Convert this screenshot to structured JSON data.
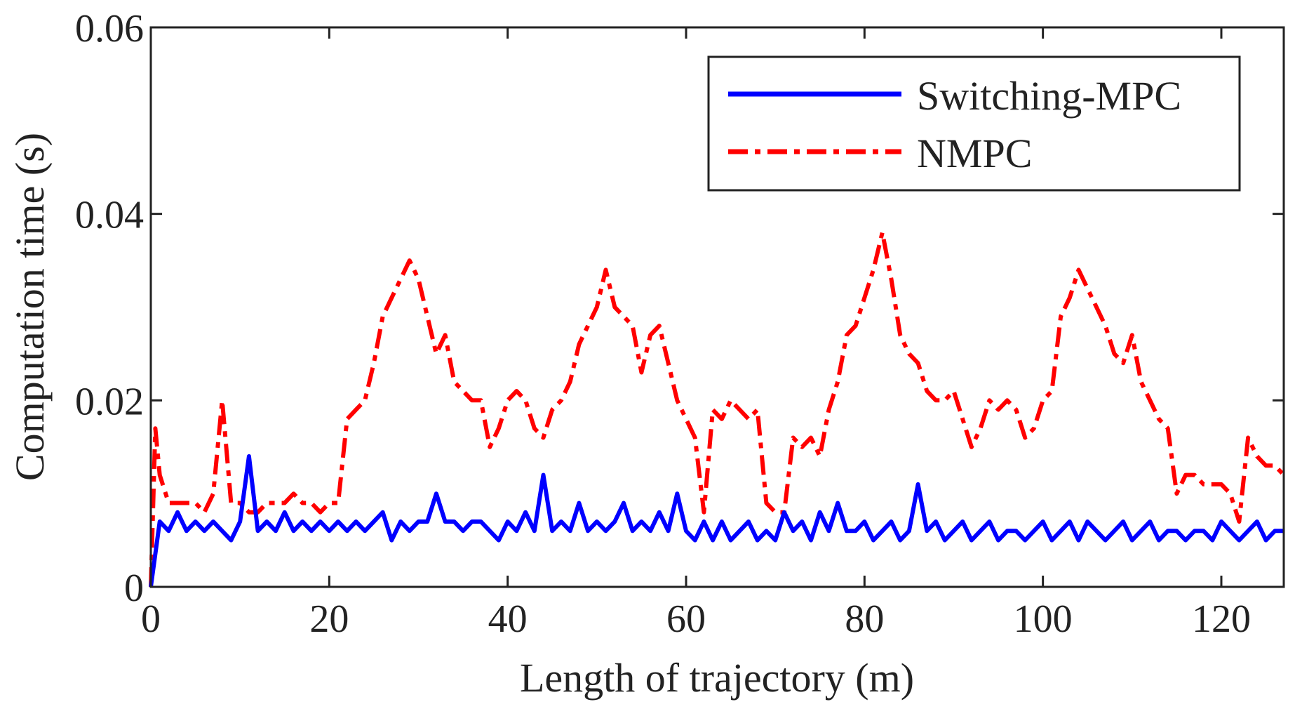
{
  "chart_data": {
    "type": "line",
    "title": "",
    "xlabel": "Length of trajectory (m)",
    "ylabel": "Computation time (s)",
    "xlim": [
      0,
      127
    ],
    "ylim": [
      0,
      0.06
    ],
    "xticks": [
      0,
      20,
      40,
      60,
      80,
      100,
      120
    ],
    "xtick_labels": [
      "0",
      "20",
      "40",
      "60",
      "80",
      "100",
      "120"
    ],
    "yticks": [
      0,
      0.02,
      0.04,
      0.06
    ],
    "ytick_labels": [
      "0",
      "0.02",
      "0.04",
      "0.06"
    ],
    "grid": false,
    "legend_position": "top-right",
    "series": [
      {
        "name": "Switching-MPC",
        "color": "#0000ff",
        "style": "solid",
        "x": [
          0,
          1,
          2,
          3,
          4,
          5,
          6,
          7,
          8,
          9,
          10,
          11,
          12,
          13,
          14,
          15,
          16,
          17,
          18,
          19,
          20,
          21,
          22,
          23,
          24,
          25,
          26,
          27,
          28,
          29,
          30,
          31,
          32,
          33,
          34,
          35,
          36,
          37,
          38,
          39,
          40,
          41,
          42,
          43,
          44,
          45,
          46,
          47,
          48,
          49,
          50,
          51,
          52,
          53,
          54,
          55,
          56,
          57,
          58,
          59,
          60,
          61,
          62,
          63,
          64,
          65,
          66,
          67,
          68,
          69,
          70,
          71,
          72,
          73,
          74,
          75,
          76,
          77,
          78,
          79,
          80,
          81,
          82,
          83,
          84,
          85,
          86,
          87,
          88,
          89,
          90,
          91,
          92,
          93,
          94,
          95,
          96,
          97,
          98,
          99,
          100,
          101,
          102,
          103,
          104,
          105,
          106,
          107,
          108,
          109,
          110,
          111,
          112,
          113,
          114,
          115,
          116,
          117,
          118,
          119,
          120,
          121,
          122,
          123,
          124,
          125,
          126,
          127
        ],
        "values": [
          0.0,
          0.007,
          0.006,
          0.008,
          0.006,
          0.007,
          0.006,
          0.007,
          0.006,
          0.005,
          0.007,
          0.014,
          0.006,
          0.007,
          0.006,
          0.008,
          0.006,
          0.007,
          0.006,
          0.007,
          0.006,
          0.007,
          0.006,
          0.007,
          0.006,
          0.007,
          0.008,
          0.005,
          0.007,
          0.006,
          0.007,
          0.007,
          0.01,
          0.007,
          0.007,
          0.006,
          0.007,
          0.007,
          0.006,
          0.005,
          0.007,
          0.006,
          0.008,
          0.006,
          0.012,
          0.006,
          0.007,
          0.006,
          0.009,
          0.006,
          0.007,
          0.006,
          0.007,
          0.009,
          0.006,
          0.007,
          0.006,
          0.008,
          0.006,
          0.01,
          0.006,
          0.005,
          0.007,
          0.005,
          0.007,
          0.005,
          0.006,
          0.007,
          0.005,
          0.006,
          0.005,
          0.008,
          0.006,
          0.007,
          0.005,
          0.008,
          0.006,
          0.009,
          0.006,
          0.006,
          0.007,
          0.005,
          0.006,
          0.007,
          0.005,
          0.006,
          0.011,
          0.006,
          0.007,
          0.005,
          0.006,
          0.007,
          0.005,
          0.006,
          0.007,
          0.005,
          0.006,
          0.006,
          0.005,
          0.006,
          0.007,
          0.005,
          0.006,
          0.007,
          0.005,
          0.007,
          0.006,
          0.005,
          0.006,
          0.007,
          0.005,
          0.006,
          0.007,
          0.005,
          0.006,
          0.006,
          0.005,
          0.006,
          0.006,
          0.005,
          0.007,
          0.006,
          0.005,
          0.006,
          0.007,
          0.005,
          0.006,
          0.006
        ]
      },
      {
        "name": "NMPC",
        "color": "#ff0000",
        "style": "dash-dot",
        "x": [
          0,
          0.5,
          1,
          2,
          3,
          4,
          5,
          6,
          7,
          8,
          9,
          10,
          11,
          12,
          13,
          14,
          15,
          16,
          17,
          18,
          19,
          20,
          21,
          22,
          23,
          24,
          25,
          26,
          27,
          28,
          29,
          30,
          31,
          32,
          33,
          34,
          35,
          36,
          37,
          38,
          39,
          40,
          41,
          42,
          43,
          44,
          45,
          46,
          47,
          48,
          49,
          50,
          51,
          52,
          53,
          54,
          55,
          56,
          57,
          58,
          59,
          60,
          61,
          62,
          63,
          64,
          65,
          66,
          67,
          68,
          69,
          70,
          71,
          72,
          73,
          74,
          75,
          76,
          77,
          78,
          79,
          80,
          81,
          82,
          83,
          84,
          85,
          86,
          87,
          88,
          89,
          90,
          91,
          92,
          93,
          94,
          95,
          96,
          97,
          98,
          99,
          100,
          101,
          102,
          103,
          104,
          105,
          106,
          107,
          108,
          109,
          110,
          111,
          112,
          113,
          114,
          115,
          116,
          117,
          118,
          119,
          120,
          121,
          122,
          123,
          124,
          125,
          126,
          127
        ],
        "values": [
          0.0,
          0.017,
          0.012,
          0.009,
          0.009,
          0.009,
          0.009,
          0.008,
          0.01,
          0.02,
          0.009,
          0.009,
          0.008,
          0.008,
          0.009,
          0.009,
          0.009,
          0.01,
          0.009,
          0.009,
          0.008,
          0.009,
          0.009,
          0.018,
          0.019,
          0.02,
          0.024,
          0.029,
          0.031,
          0.033,
          0.035,
          0.033,
          0.029,
          0.025,
          0.027,
          0.022,
          0.021,
          0.02,
          0.02,
          0.015,
          0.017,
          0.02,
          0.021,
          0.02,
          0.017,
          0.016,
          0.019,
          0.02,
          0.022,
          0.026,
          0.028,
          0.03,
          0.034,
          0.03,
          0.029,
          0.028,
          0.023,
          0.027,
          0.028,
          0.024,
          0.02,
          0.018,
          0.016,
          0.008,
          0.019,
          0.018,
          0.02,
          0.019,
          0.018,
          0.019,
          0.009,
          0.008,
          0.008,
          0.016,
          0.015,
          0.016,
          0.014,
          0.019,
          0.022,
          0.027,
          0.028,
          0.031,
          0.034,
          0.038,
          0.033,
          0.027,
          0.025,
          0.024,
          0.021,
          0.02,
          0.02,
          0.021,
          0.018,
          0.015,
          0.017,
          0.02,
          0.019,
          0.02,
          0.019,
          0.016,
          0.017,
          0.02,
          0.021,
          0.029,
          0.031,
          0.034,
          0.032,
          0.03,
          0.028,
          0.025,
          0.024,
          0.027,
          0.022,
          0.02,
          0.018,
          0.017,
          0.01,
          0.012,
          0.012,
          0.011,
          0.011,
          0.011,
          0.01,
          0.007,
          0.016,
          0.014,
          0.013,
          0.013,
          0.012
        ]
      }
    ]
  }
}
